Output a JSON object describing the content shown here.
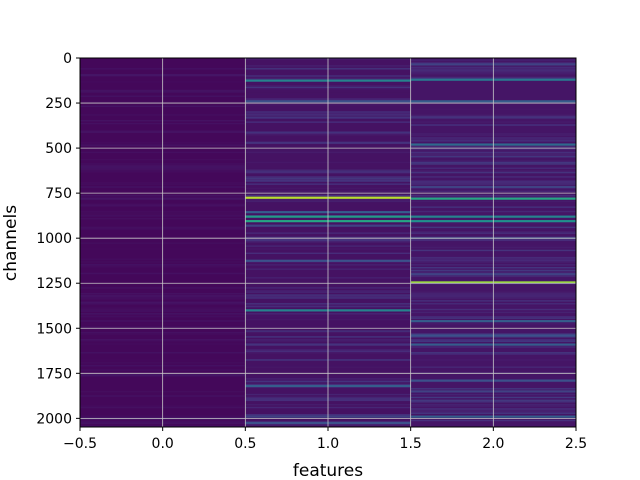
{
  "chart_data": {
    "type": "heatmap",
    "title": "",
    "xlabel": "features",
    "ylabel": "channels",
    "xlim": [
      -0.5,
      2.5
    ],
    "ylim": [
      2048,
      0
    ],
    "x_ticks": [
      "−0.5",
      "0.0",
      "0.5",
      "1.0",
      "1.5",
      "2.0",
      "2.5"
    ],
    "x_tick_values": [
      -0.5,
      0.0,
      0.5,
      1.0,
      1.5,
      2.0,
      2.5
    ],
    "y_ticks": [
      "0",
      "250",
      "500",
      "750",
      "1000",
      "1250",
      "1500",
      "1750",
      "2000"
    ],
    "y_tick_values": [
      0,
      250,
      500,
      750,
      1000,
      1250,
      1500,
      1750,
      2000
    ],
    "grid": true,
    "colormap": "viridis",
    "colors": {
      "background": "#440154",
      "grid": "#c8c8c8"
    },
    "columns": [
      {
        "feature": 0,
        "x_range": [
          -0.5,
          0.5
        ],
        "base_value": 0.02,
        "bands": [
          {
            "channel": 95,
            "value": 0.06
          },
          {
            "channel": 410,
            "value": 0.05
          },
          {
            "channel": 780,
            "value": 0.06
          },
          {
            "channel": 1320,
            "value": 0.05
          },
          {
            "channel": 1760,
            "value": 0.06
          },
          {
            "channel": 2000,
            "value": 0.08
          }
        ]
      },
      {
        "feature": 1,
        "x_range": [
          0.5,
          1.5
        ],
        "base_value": 0.05,
        "bands": [
          {
            "channel": 125,
            "value": 0.45
          },
          {
            "channel": 240,
            "value": 0.25
          },
          {
            "channel": 330,
            "value": 0.15
          },
          {
            "channel": 470,
            "value": 0.15
          },
          {
            "channel": 680,
            "value": 0.15
          },
          {
            "channel": 775,
            "value": 0.9
          },
          {
            "channel": 855,
            "value": 0.3
          },
          {
            "channel": 880,
            "value": 0.55
          },
          {
            "channel": 905,
            "value": 0.6
          },
          {
            "channel": 930,
            "value": 0.2
          },
          {
            "channel": 1010,
            "value": 0.15
          },
          {
            "channel": 1125,
            "value": 0.25
          },
          {
            "channel": 1400,
            "value": 0.45
          },
          {
            "channel": 1590,
            "value": 0.15
          },
          {
            "channel": 1820,
            "value": 0.3
          },
          {
            "channel": 1990,
            "value": 0.2
          },
          {
            "channel": 2025,
            "value": 0.25
          }
        ]
      },
      {
        "feature": 2,
        "x_range": [
          1.5,
          2.5
        ],
        "base_value": 0.06,
        "bands": [
          {
            "channel": 35,
            "value": 0.2
          },
          {
            "channel": 120,
            "value": 0.4
          },
          {
            "channel": 240,
            "value": 0.3
          },
          {
            "channel": 480,
            "value": 0.35
          },
          {
            "channel": 715,
            "value": 0.2
          },
          {
            "channel": 780,
            "value": 0.6
          },
          {
            "channel": 880,
            "value": 0.45
          },
          {
            "channel": 905,
            "value": 0.5
          },
          {
            "channel": 1000,
            "value": 0.2
          },
          {
            "channel": 1200,
            "value": 0.2
          },
          {
            "channel": 1245,
            "value": 0.85
          },
          {
            "channel": 1460,
            "value": 0.3
          },
          {
            "channel": 1540,
            "value": 0.25
          },
          {
            "channel": 1590,
            "value": 0.3
          },
          {
            "channel": 1790,
            "value": 0.25
          },
          {
            "channel": 1850,
            "value": 0.2
          },
          {
            "channel": 1990,
            "value": 0.3
          }
        ]
      }
    ]
  }
}
